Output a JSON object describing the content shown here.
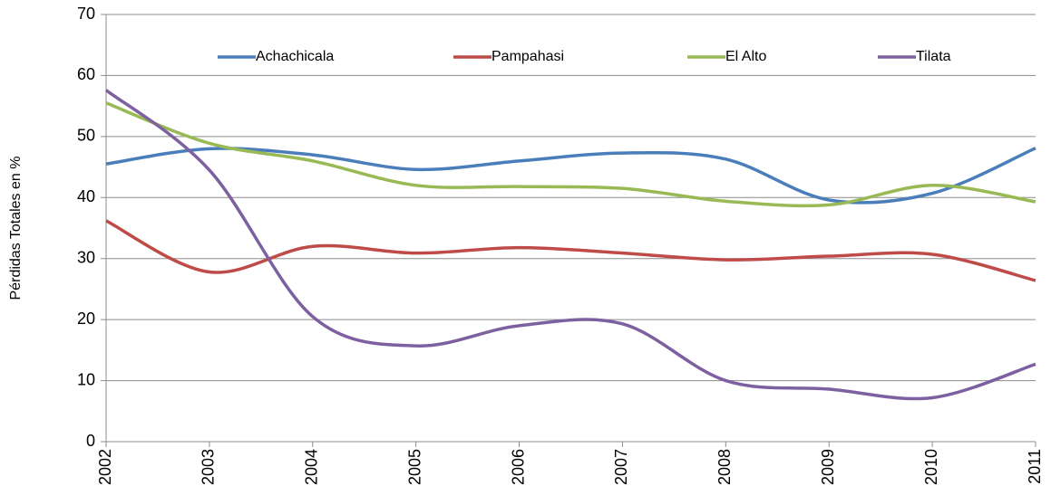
{
  "chart_data": {
    "type": "line",
    "y_label": "Pérdidas Totales en %",
    "x": [
      2002,
      2003,
      2004,
      2005,
      2006,
      2007,
      2008,
      2009,
      2010,
      2011
    ],
    "xlim": [
      2002,
      2011
    ],
    "xticks": [
      2002,
      2003,
      2004,
      2005,
      2006,
      2007,
      2008,
      2009,
      2010,
      2011
    ],
    "ylim": [
      0,
      70
    ],
    "yticks": [
      0,
      10,
      20,
      30,
      40,
      50,
      60,
      70
    ],
    "grid": true,
    "smooth": true,
    "legend": "top",
    "series": [
      {
        "name": "Achachicala",
        "color": "#4a7ebb",
        "values": [
          45.5,
          48,
          47,
          44.6,
          46,
          47.3,
          46.3,
          39.6,
          40.7,
          48.1
        ]
      },
      {
        "name": "Pampahasi",
        "color": "#be4b48",
        "values": [
          36.2,
          27.8,
          32,
          30.9,
          31.8,
          30.9,
          29.8,
          30.4,
          30.7,
          26.4
        ]
      },
      {
        "name": "El Alto",
        "color": "#98b954",
        "values": [
          55.5,
          48.9,
          46,
          42,
          41.8,
          41.5,
          39.4,
          38.8,
          42,
          39.3
        ]
      },
      {
        "name": "Tilata",
        "color": "#7d60a0",
        "values": [
          57.6,
          44.5,
          20.5,
          15.7,
          19,
          19.3,
          10,
          8.6,
          7.2,
          12.7
        ]
      }
    ]
  }
}
